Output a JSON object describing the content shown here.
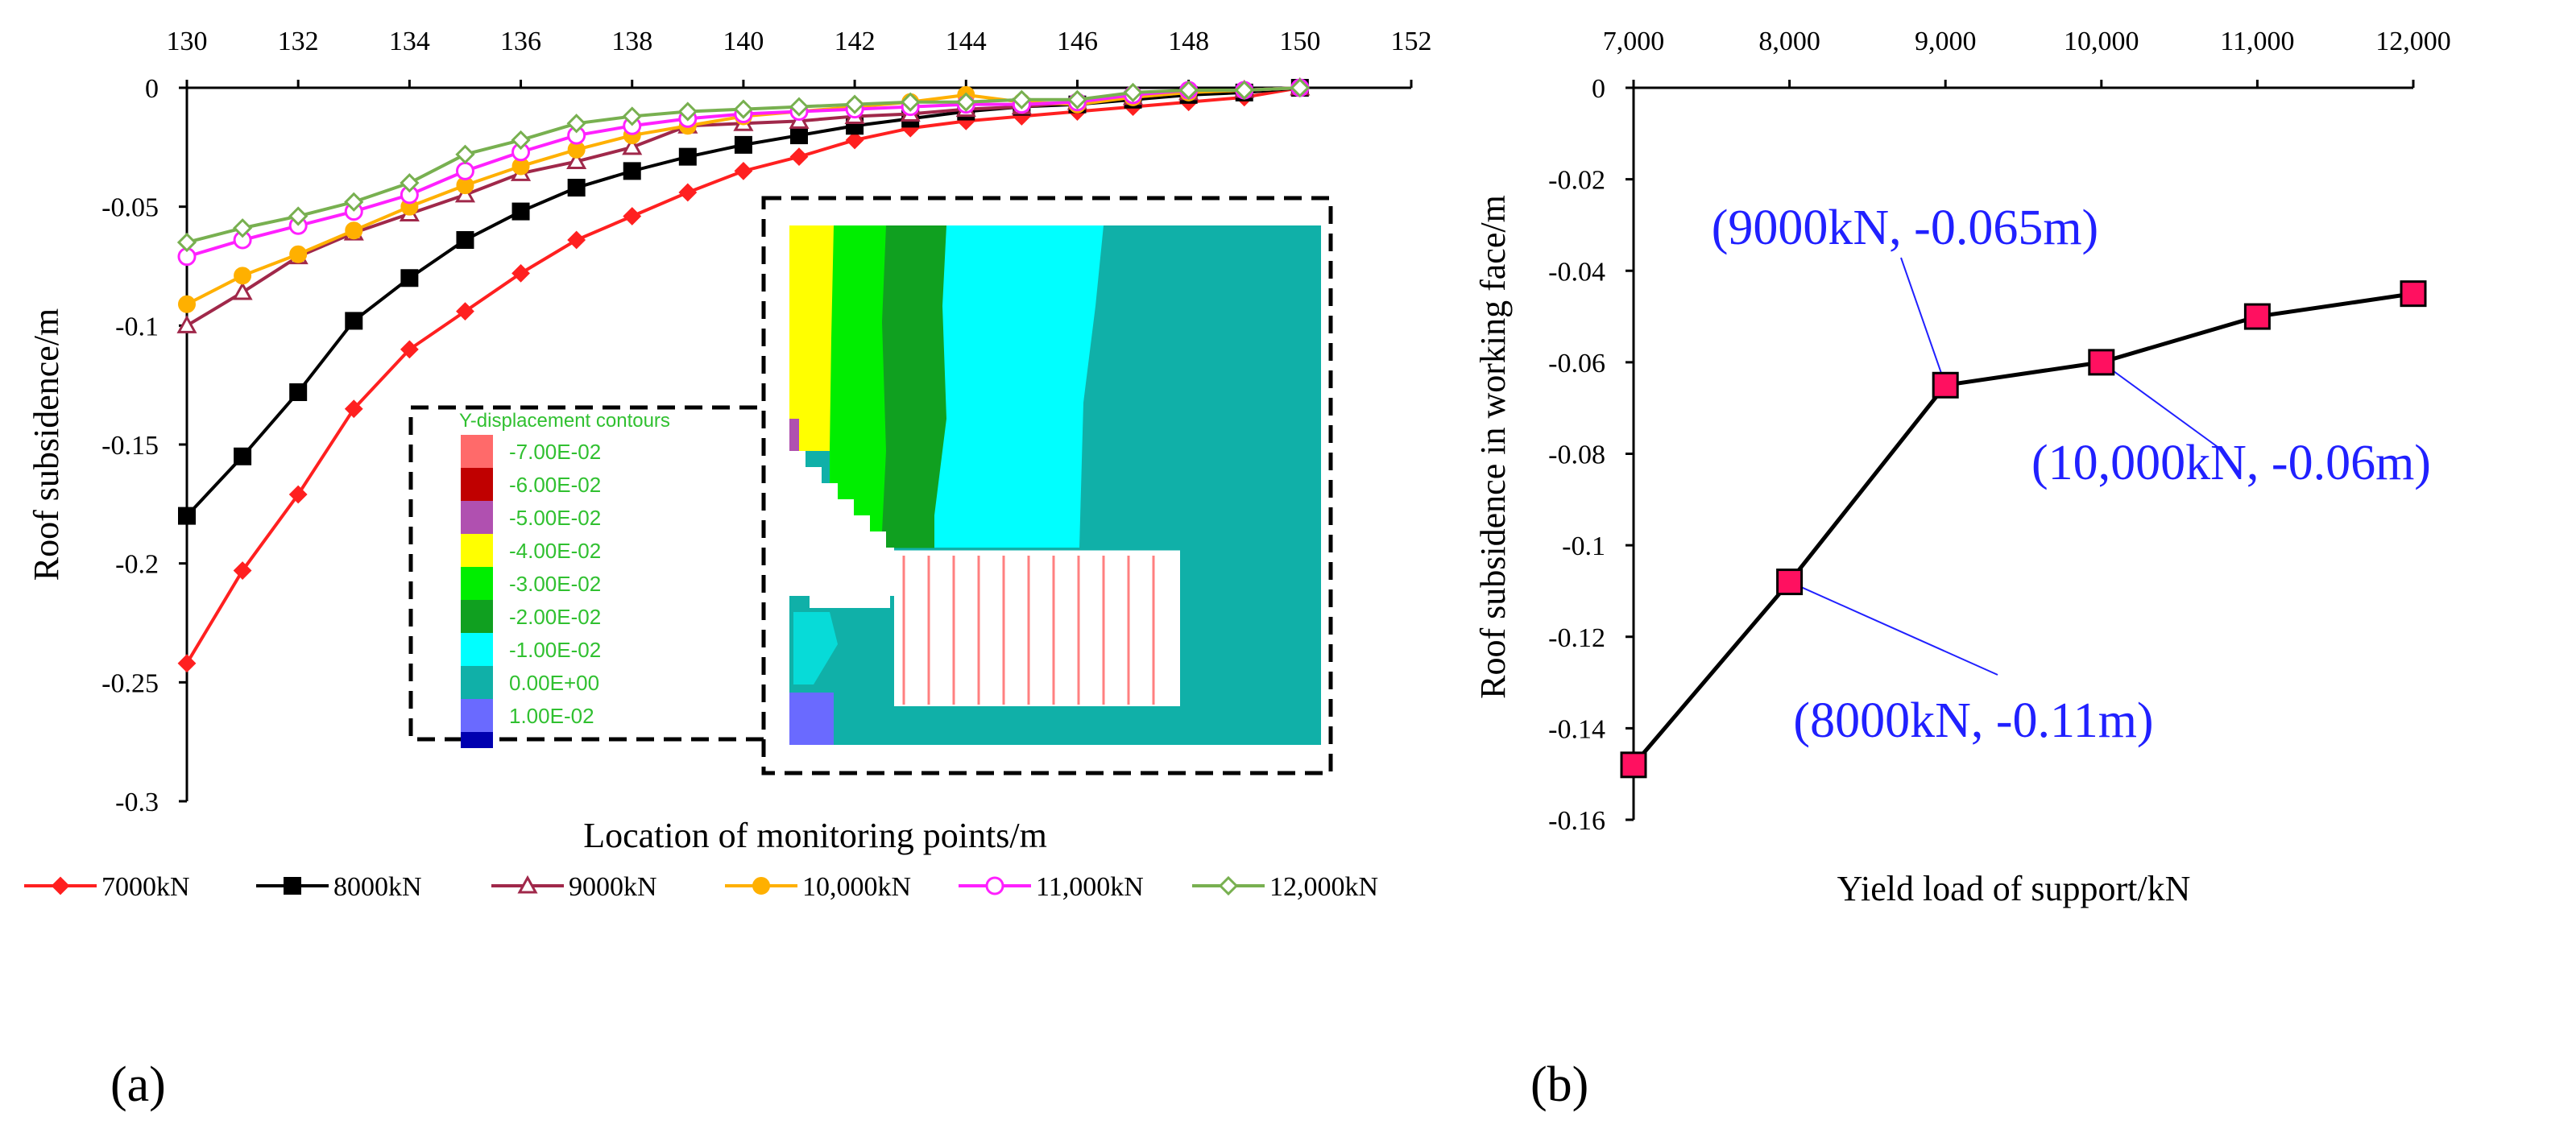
{
  "panel_labels": {
    "a": "(a)",
    "b": "(b)"
  },
  "colors": {
    "s7000": "#ff2020",
    "s8000": "#000000",
    "s9000": "#a0284a",
    "s10000": "#ffb000",
    "s11000": "#ff20ff",
    "s12000": "#78b050",
    "b_marker": "#ff1060",
    "b_annotation": "#2020ff",
    "contour_text": "#30c030"
  },
  "inset": {
    "legend_title": "Y-displacement contours",
    "legend_items": [
      {
        "label": "-7.00E-02",
        "color": "#ff6a6a"
      },
      {
        "label": "-6.00E-02",
        "color": "#c00000"
      },
      {
        "label": "-5.00E-02",
        "color": "#b050b0"
      },
      {
        "label": "-4.00E-02",
        "color": "#ffff00"
      },
      {
        "label": "-3.00E-02",
        "color": "#00ee00"
      },
      {
        "label": "-2.00E-02",
        "color": "#10a020"
      },
      {
        "label": "-1.00E-02",
        "color": "#00ffff"
      },
      {
        "label": " 0.00E+00",
        "color": "#10b0a8"
      },
      {
        "label": " 1.00E-02",
        "color": "#6a6aff"
      },
      {
        "label": "",
        "color": "#0000b0"
      }
    ]
  },
  "chart_data": [
    {
      "type": "line",
      "title": "",
      "xlabel": "Location of monitoring points/m",
      "ylabel": "Roof subsidence/m",
      "xlim": [
        130,
        152
      ],
      "ylim": [
        -0.3,
        0
      ],
      "xticks": [
        "130",
        "132",
        "134",
        "136",
        "138",
        "140",
        "142",
        "144",
        "146",
        "148",
        "150",
        "152"
      ],
      "yticks": [
        "0",
        "-0.05",
        "-0.1",
        "-0.15",
        "-0.2",
        "-0.25",
        "-0.3"
      ],
      "x_axis_position": "top",
      "legend_position": "bottom",
      "x": [
        130,
        131,
        132,
        133,
        134,
        135,
        136,
        137,
        138,
        139,
        140,
        141,
        142,
        143,
        144,
        145,
        146,
        147,
        148,
        149,
        150
      ],
      "series": [
        {
          "name": "7000kN",
          "marker": "diamond",
          "values": [
            -0.242,
            -0.203,
            -0.171,
            -0.135,
            -0.11,
            -0.094,
            -0.078,
            -0.064,
            -0.054,
            -0.044,
            -0.035,
            -0.029,
            -0.022,
            -0.017,
            -0.014,
            -0.012,
            -0.01,
            -0.008,
            -0.006,
            -0.004,
            0
          ]
        },
        {
          "name": "8000kN",
          "marker": "square",
          "values": [
            -0.18,
            -0.155,
            -0.128,
            -0.098,
            -0.08,
            -0.064,
            -0.052,
            -0.042,
            -0.035,
            -0.029,
            -0.024,
            -0.02,
            -0.016,
            -0.013,
            -0.01,
            -0.008,
            -0.007,
            -0.005,
            -0.003,
            -0.002,
            0
          ]
        },
        {
          "name": "9000kN",
          "marker": "triangle",
          "values": [
            -0.1,
            -0.086,
            -0.071,
            -0.061,
            -0.053,
            -0.045,
            -0.036,
            -0.031,
            -0.025,
            -0.016,
            -0.015,
            -0.014,
            -0.012,
            -0.011,
            -0.009,
            -0.008,
            -0.006,
            -0.004,
            -0.002,
            -0.001,
            0
          ]
        },
        {
          "name": "10,000kN",
          "marker": "circle-filled",
          "values": [
            -0.091,
            -0.079,
            -0.07,
            -0.06,
            -0.05,
            -0.041,
            -0.033,
            -0.026,
            -0.02,
            -0.016,
            -0.012,
            -0.01,
            -0.008,
            -0.006,
            -0.003,
            -0.006,
            -0.007,
            -0.004,
            -0.002,
            -0.001,
            0
          ]
        },
        {
          "name": "11,000kN",
          "marker": "circle-open",
          "values": [
            -0.071,
            -0.064,
            -0.058,
            -0.052,
            -0.045,
            -0.035,
            -0.027,
            -0.02,
            -0.016,
            -0.013,
            -0.011,
            -0.01,
            -0.009,
            -0.008,
            -0.007,
            -0.007,
            -0.006,
            -0.003,
            -0.001,
            -0.001,
            0
          ]
        },
        {
          "name": "12,000kN",
          "marker": "diamond-open",
          "values": [
            -0.065,
            -0.059,
            -0.054,
            -0.048,
            -0.04,
            -0.028,
            -0.022,
            -0.015,
            -0.012,
            -0.01,
            -0.009,
            -0.008,
            -0.007,
            -0.006,
            -0.006,
            -0.005,
            -0.005,
            -0.002,
            -0.001,
            -0.001,
            0
          ]
        }
      ]
    },
    {
      "type": "line",
      "title": "",
      "xlabel": "Yield load of support/kN",
      "ylabel": "Roof subsidence in working face/m",
      "xlim": [
        7000,
        12000
      ],
      "ylim": [
        -0.16,
        0
      ],
      "xticks": [
        "7,000",
        "8,000",
        "9,000",
        "10,000",
        "11,000",
        "12,000"
      ],
      "yticks": [
        "0",
        "-0.02",
        "-0.04",
        "-0.06",
        "-0.08",
        "-0.1",
        "-0.12",
        "-0.14",
        "-0.16"
      ],
      "x_axis_position": "top",
      "x": [
        7000,
        8000,
        9000,
        10000,
        11000,
        12000
      ],
      "series": [
        {
          "name": "",
          "marker": "square",
          "values": [
            -0.148,
            -0.108,
            -0.065,
            -0.06,
            -0.05,
            -0.045
          ]
        }
      ],
      "annotations": [
        {
          "text": "(9000kN, -0.065m)",
          "x": 9000,
          "y": -0.065
        },
        {
          "text": "(10,000kN, -0.06m)",
          "x": 10000,
          "y": -0.06
        },
        {
          "text": "(8000kN, -0.11m)",
          "x": 8000,
          "y": -0.108
        }
      ]
    }
  ]
}
